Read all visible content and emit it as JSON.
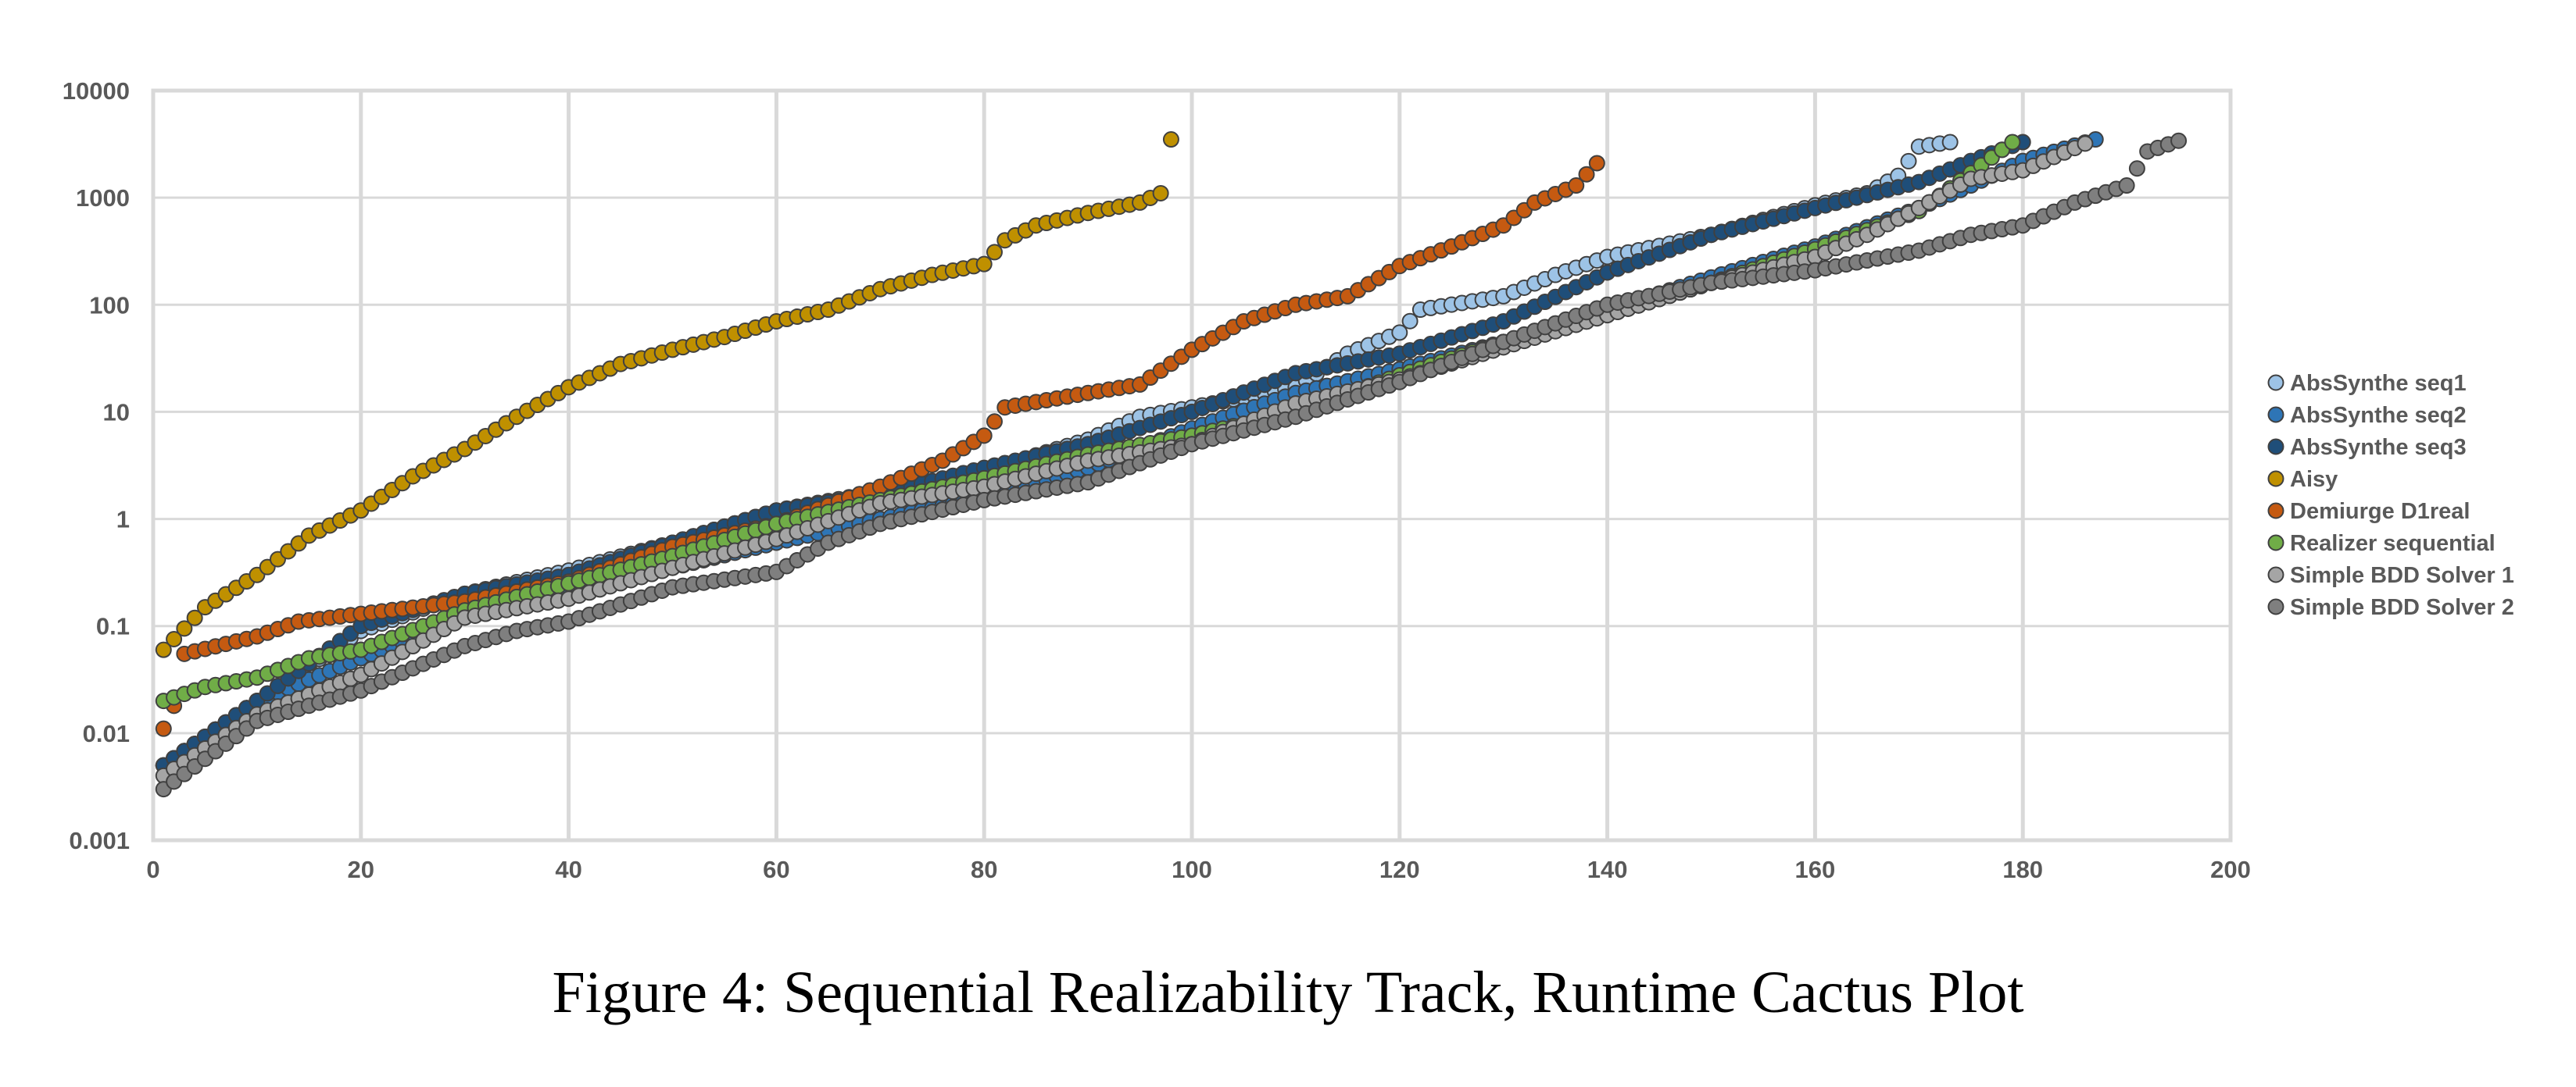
{
  "caption": "Figure 4: Sequential Realizability Track, Runtime Cactus Plot",
  "chart_data": {
    "type": "scatter",
    "title": "",
    "xlabel": "",
    "ylabel": "",
    "xlim": [
      0,
      200
    ],
    "ylim": [
      0.001,
      10000
    ],
    "yscale": "log",
    "grid": true,
    "legend_position": "right",
    "x_ticks": [
      0,
      20,
      40,
      60,
      80,
      100,
      120,
      140,
      160,
      180,
      200
    ],
    "x_tick_labels": [
      "0",
      "20",
      "40",
      "60",
      "80",
      "100",
      "120",
      "140",
      "160",
      "180",
      "200"
    ],
    "y_ticks": [
      0.001,
      0.01,
      0.1,
      1,
      10,
      100,
      1000,
      10000
    ],
    "y_tick_labels": [
      "0.001",
      "0.01",
      "0.1",
      "1",
      "10",
      "100",
      "1000",
      "10000"
    ],
    "series": [
      {
        "name": "AbsSynthe seq1",
        "color": "#9DC3E6",
        "n": 173,
        "anchors": [
          [
            1,
            0.005
          ],
          [
            10,
            0.02
          ],
          [
            20,
            0.09
          ],
          [
            30,
            0.2
          ],
          [
            40,
            0.33
          ],
          [
            50,
            0.6
          ],
          [
            60,
            1.2
          ],
          [
            70,
            1.8
          ],
          [
            80,
            2.8
          ],
          [
            90,
            5.5
          ],
          [
            95,
            9
          ],
          [
            100,
            11
          ],
          [
            110,
            17
          ],
          [
            115,
            35
          ],
          [
            120,
            55
          ],
          [
            122,
            90
          ],
          [
            130,
            120
          ],
          [
            135,
            190
          ],
          [
            140,
            280
          ],
          [
            150,
            450
          ],
          [
            155,
            620
          ],
          [
            160,
            850
          ],
          [
            165,
            1100
          ],
          [
            168,
            1600
          ],
          [
            170,
            3000
          ],
          [
            173,
            3300
          ]
        ]
      },
      {
        "name": "AbsSynthe seq2",
        "color": "#2E75B6",
        "n": 187,
        "anchors": [
          [
            1,
            0.005
          ],
          [
            10,
            0.02
          ],
          [
            20,
            0.05
          ],
          [
            30,
            0.12
          ],
          [
            40,
            0.2
          ],
          [
            50,
            0.35
          ],
          [
            60,
            0.6
          ],
          [
            70,
            1.0
          ],
          [
            80,
            1.6
          ],
          [
            90,
            3
          ],
          [
            100,
            7
          ],
          [
            110,
            15
          ],
          [
            120,
            25
          ],
          [
            130,
            45
          ],
          [
            140,
            90
          ],
          [
            150,
            180
          ],
          [
            160,
            350
          ],
          [
            170,
            800
          ],
          [
            175,
            1300
          ],
          [
            180,
            2200
          ],
          [
            187,
            3500
          ]
        ]
      },
      {
        "name": "AbsSynthe seq3",
        "color": "#1F4E79",
        "n": 180,
        "anchors": [
          [
            1,
            0.005
          ],
          [
            10,
            0.02
          ],
          [
            20,
            0.1
          ],
          [
            30,
            0.2
          ],
          [
            40,
            0.3
          ],
          [
            50,
            0.6
          ],
          [
            60,
            1.2
          ],
          [
            70,
            1.7
          ],
          [
            80,
            3
          ],
          [
            90,
            5
          ],
          [
            100,
            10
          ],
          [
            110,
            23
          ],
          [
            120,
            35
          ],
          [
            130,
            70
          ],
          [
            140,
            200
          ],
          [
            150,
            450
          ],
          [
            160,
            800
          ],
          [
            170,
            1400
          ],
          [
            175,
            2200
          ],
          [
            180,
            3300
          ]
        ]
      },
      {
        "name": "Aisy",
        "color": "#BF9000",
        "n": 98,
        "anchors": [
          [
            1,
            0.06
          ],
          [
            5,
            0.15
          ],
          [
            10,
            0.3
          ],
          [
            15,
            0.7
          ],
          [
            20,
            1.2
          ],
          [
            25,
            2.5
          ],
          [
            30,
            4.5
          ],
          [
            35,
            9
          ],
          [
            40,
            17
          ],
          [
            45,
            28
          ],
          [
            50,
            38
          ],
          [
            55,
            50
          ],
          [
            60,
            70
          ],
          [
            65,
            90
          ],
          [
            70,
            140
          ],
          [
            75,
            190
          ],
          [
            80,
            240
          ],
          [
            82,
            400
          ],
          [
            85,
            550
          ],
          [
            90,
            720
          ],
          [
            95,
            900
          ],
          [
            97,
            1100
          ],
          [
            98,
            3500
          ]
        ]
      },
      {
        "name": "Demiurge D1real",
        "color": "#C55A11",
        "n": 139,
        "anchors": [
          [
            1,
            0.011
          ],
          [
            2,
            0.018
          ],
          [
            3,
            0.055
          ],
          [
            10,
            0.08
          ],
          [
            14,
            0.11
          ],
          [
            20,
            0.13
          ],
          [
            30,
            0.17
          ],
          [
            40,
            0.26
          ],
          [
            50,
            0.55
          ],
          [
            60,
            0.9
          ],
          [
            70,
            2
          ],
          [
            76,
            3.5
          ],
          [
            80,
            6
          ],
          [
            82,
            11
          ],
          [
            90,
            15
          ],
          [
            95,
            18
          ],
          [
            100,
            38
          ],
          [
            105,
            70
          ],
          [
            110,
            100
          ],
          [
            115,
            120
          ],
          [
            120,
            230
          ],
          [
            125,
            350
          ],
          [
            130,
            550
          ],
          [
            133,
            900
          ],
          [
            137,
            1300
          ],
          [
            139,
            2100
          ]
        ]
      },
      {
        "name": "Realizer sequential",
        "color": "#70AD47",
        "n": 179,
        "anchors": [
          [
            1,
            0.02
          ],
          [
            5,
            0.027
          ],
          [
            10,
            0.033
          ],
          [
            15,
            0.05
          ],
          [
            20,
            0.06
          ],
          [
            30,
            0.14
          ],
          [
            40,
            0.25
          ],
          [
            50,
            0.45
          ],
          [
            60,
            0.9
          ],
          [
            70,
            1.5
          ],
          [
            80,
            2.4
          ],
          [
            90,
            4
          ],
          [
            100,
            6
          ],
          [
            110,
            10
          ],
          [
            120,
            22
          ],
          [
            130,
            45
          ],
          [
            140,
            80
          ],
          [
            150,
            160
          ],
          [
            160,
            330
          ],
          [
            170,
            750
          ],
          [
            175,
            1700
          ],
          [
            179,
            3300
          ]
        ]
      },
      {
        "name": "Simple BDD Solver 1",
        "color": "#A5A5A5",
        "n": 186,
        "anchors": [
          [
            1,
            0.004
          ],
          [
            10,
            0.015
          ],
          [
            20,
            0.035
          ],
          [
            30,
            0.12
          ],
          [
            40,
            0.18
          ],
          [
            50,
            0.35
          ],
          [
            60,
            0.65
          ],
          [
            70,
            1.4
          ],
          [
            80,
            2
          ],
          [
            90,
            3.5
          ],
          [
            100,
            5
          ],
          [
            110,
            12
          ],
          [
            120,
            20
          ],
          [
            130,
            40
          ],
          [
            140,
            80
          ],
          [
            150,
            160
          ],
          [
            160,
            280
          ],
          [
            165,
            450
          ],
          [
            170,
            800
          ],
          [
            175,
            1500
          ],
          [
            180,
            1800
          ],
          [
            186,
            3200
          ]
        ]
      },
      {
        "name": "Simple BDD Solver 2",
        "color": "#7F7F7F",
        "n": 195,
        "anchors": [
          [
            1,
            0.003
          ],
          [
            10,
            0.013
          ],
          [
            20,
            0.025
          ],
          [
            30,
            0.065
          ],
          [
            35,
            0.09
          ],
          [
            40,
            0.11
          ],
          [
            50,
            0.23
          ],
          [
            60,
            0.32
          ],
          [
            65,
            0.6
          ],
          [
            70,
            0.9
          ],
          [
            80,
            1.5
          ],
          [
            90,
            2.2
          ],
          [
            100,
            5
          ],
          [
            110,
            9
          ],
          [
            120,
            19
          ],
          [
            130,
            45
          ],
          [
            140,
            100
          ],
          [
            150,
            160
          ],
          [
            160,
            210
          ],
          [
            170,
            320
          ],
          [
            175,
            450
          ],
          [
            180,
            550
          ],
          [
            185,
            900
          ],
          [
            190,
            1300
          ],
          [
            192,
            2700
          ],
          [
            195,
            3400
          ]
        ]
      }
    ]
  }
}
